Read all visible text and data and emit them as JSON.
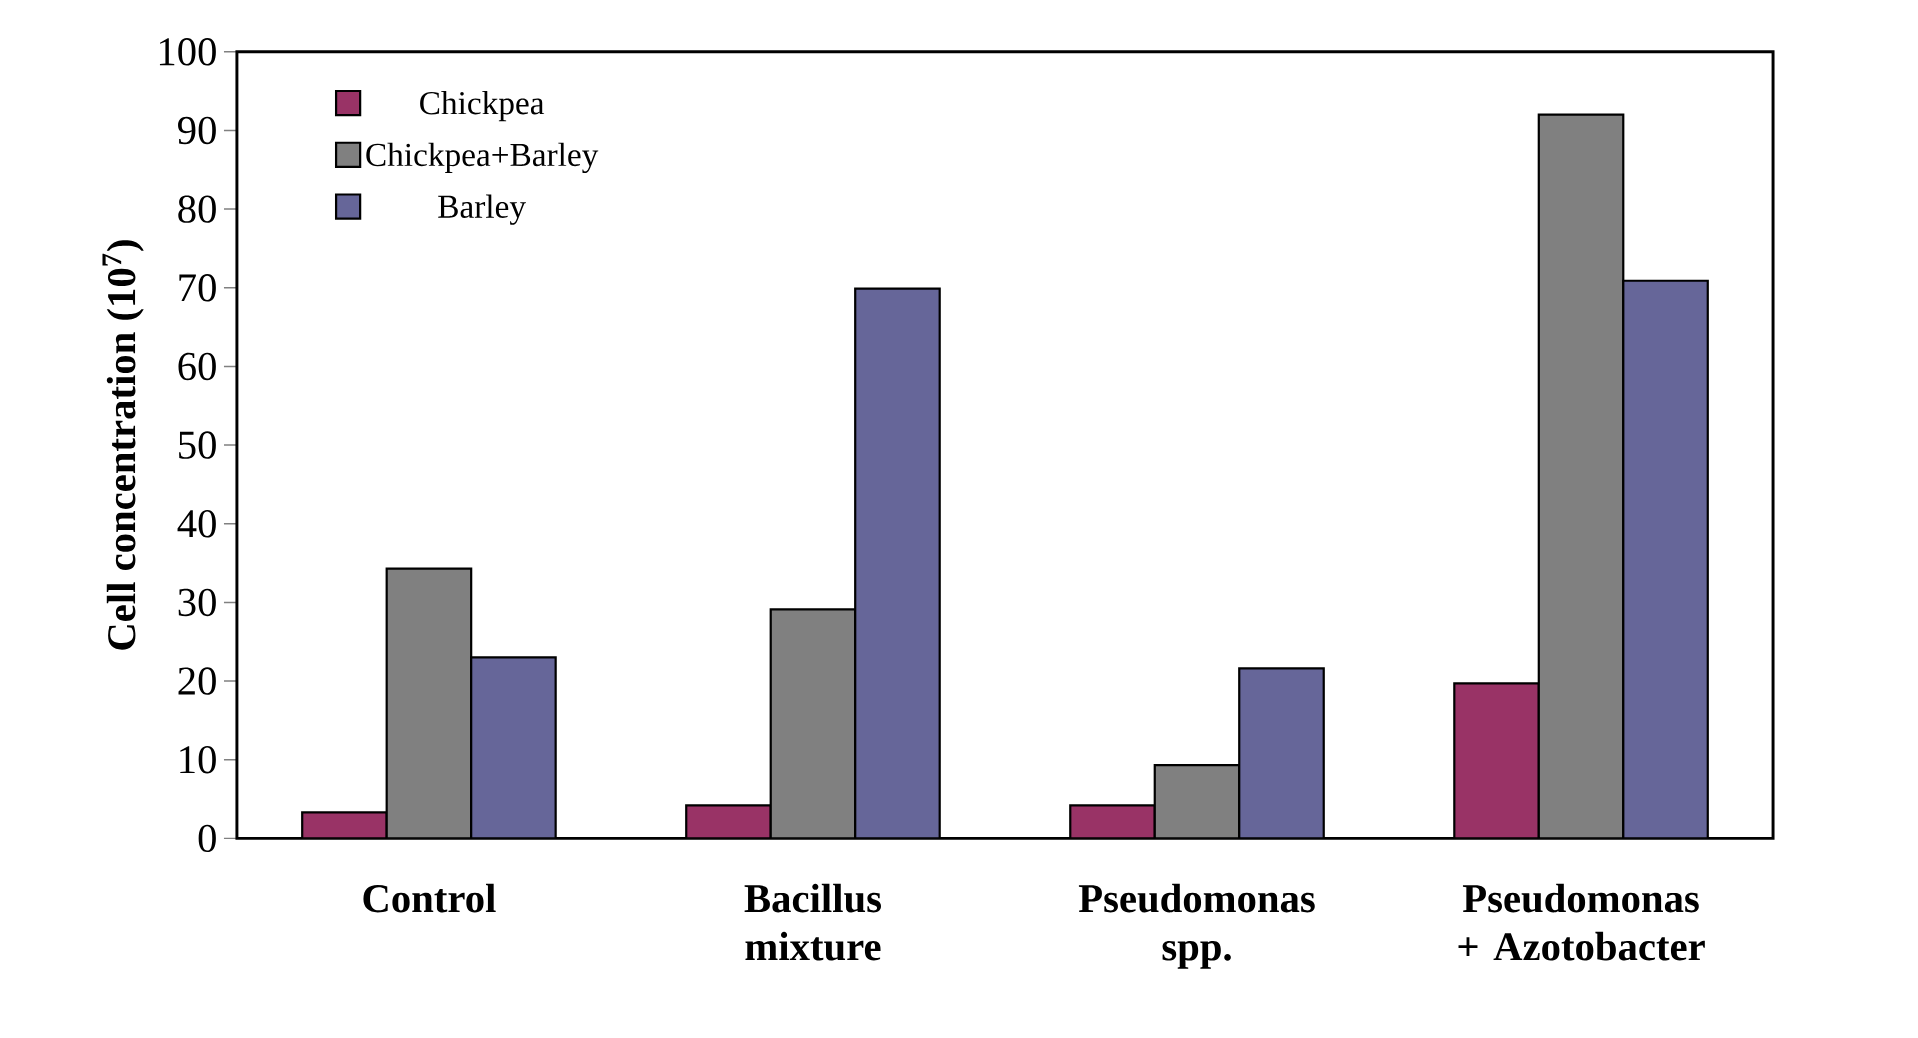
{
  "chart_data": {
    "type": "bar",
    "ylabel": "Cell concentration (10$^{7}$)",
    "categories": [
      "Control",
      "Bacillus mixture",
      "Pseudomonas spp.",
      "Pseudomonas + Azotobacter"
    ],
    "series": [
      {
        "name": "Chickpea",
        "color": "#993366",
        "values": [
          3.3,
          4.2,
          4.2,
          19.7
        ]
      },
      {
        "name": "Chickpea+Barley",
        "color": "#808080",
        "values": [
          34.3,
          29.1,
          9.3,
          92.0
        ]
      },
      {
        "name": "Barley",
        "color": "#666699",
        "values": [
          23.0,
          69.9,
          21.6,
          70.9
        ]
      }
    ],
    "ylim": [
      0,
      100
    ],
    "yticks": [
      0,
      10,
      20,
      30,
      40,
      50,
      60,
      70,
      80,
      90,
      100
    ],
    "grid": false,
    "legend": "top left"
  }
}
